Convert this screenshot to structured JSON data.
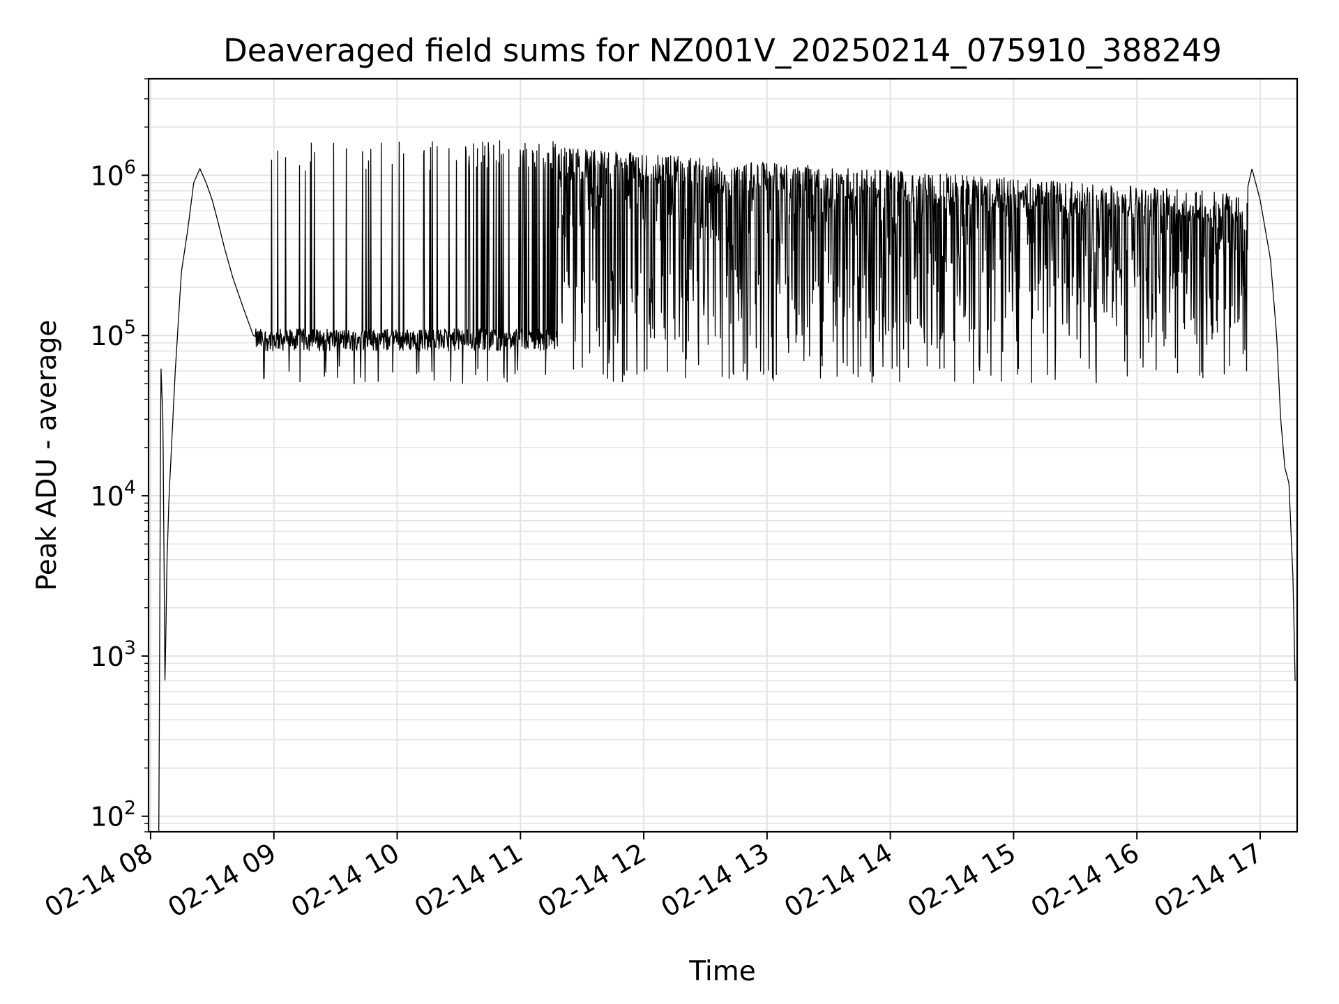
{
  "chart_data": {
    "type": "line",
    "title": "Deaveraged field sums for NZ001V_20250214_075910_388249",
    "xlabel": "Time",
    "ylabel": "Peak ADU - average",
    "yscale": "log",
    "grid": true,
    "xlim": [
      "02-14 07:59",
      "02-14 17:18"
    ],
    "ylim": [
      80,
      4000000
    ],
    "x_tick_labels": [
      "02-14 08",
      "02-14 09",
      "02-14 10",
      "02-14 11",
      "02-14 12",
      "02-14 13",
      "02-14 14",
      "02-14 15",
      "02-14 16",
      "02-14 17"
    ],
    "y_tick_labels": [
      {
        "base": "10",
        "exp": "2",
        "value": 100
      },
      {
        "base": "10",
        "exp": "3",
        "value": 1000
      },
      {
        "base": "10",
        "exp": "4",
        "value": 10000
      },
      {
        "base": "10",
        "exp": "5",
        "value": 100000
      },
      {
        "base": "10",
        "exp": "6",
        "value": 1000000
      }
    ],
    "line_color": "#000000",
    "series": [
      {
        "points": [
          [
            "02-14 08:04",
            80
          ],
          [
            "02-14 08:05",
            65000
          ],
          [
            "02-14 08:06",
            30000
          ],
          [
            "02-14 08:07",
            650
          ],
          [
            "02-14 08:08",
            4000
          ],
          [
            "02-14 08:09",
            10000
          ],
          [
            "02-14 08:12",
            60000
          ],
          [
            "02-14 08:15",
            250000
          ],
          [
            "02-14 08:18",
            450000
          ],
          [
            "02-14 08:21",
            900000
          ],
          [
            "02-14 08:24",
            1100000
          ],
          [
            "02-14 08:27",
            900000
          ],
          [
            "02-14 08:30",
            700000
          ],
          [
            "02-14 08:33",
            500000
          ],
          [
            "02-14 08:36",
            350000
          ],
          [
            "02-14 08:40",
            230000
          ],
          [
            "02-14 08:45",
            150000
          ],
          [
            "02-14 08:50",
            100000
          ],
          [
            "02-14 09:00",
            85000
          ],
          [
            "02-14 09:30",
            90000
          ],
          [
            "02-14 10:00",
            95000
          ],
          [
            "02-14 10:30",
            100000
          ],
          [
            "02-14 11:00",
            110000
          ],
          [
            "02-14 11:30",
            1500000
          ],
          [
            "02-14 12:00",
            1400000
          ],
          [
            "02-14 12:30",
            1400000
          ],
          [
            "02-14 13:00",
            1350000
          ],
          [
            "02-14 13:30",
            1300000
          ],
          [
            "02-14 14:00",
            1250000
          ],
          [
            "02-14 14:30",
            1150000
          ],
          [
            "02-14 15:00",
            1000000
          ],
          [
            "02-14 15:30",
            850000
          ],
          [
            "02-14 16:00",
            750000
          ],
          [
            "02-14 16:30",
            650000
          ],
          [
            "02-14 16:50",
            500000
          ],
          [
            "02-14 16:56",
            1100000
          ],
          [
            "02-14 17:00",
            700000
          ],
          [
            "02-14 17:05",
            300000
          ],
          [
            "02-14 17:08",
            100000
          ],
          [
            "02-14 17:10",
            30000
          ],
          [
            "02-14 17:12",
            15000
          ],
          [
            "02-14 17:14",
            12000
          ],
          [
            "02-14 17:16",
            3000
          ],
          [
            "02-14 17:17",
            700
          ]
        ]
      }
    ]
  }
}
